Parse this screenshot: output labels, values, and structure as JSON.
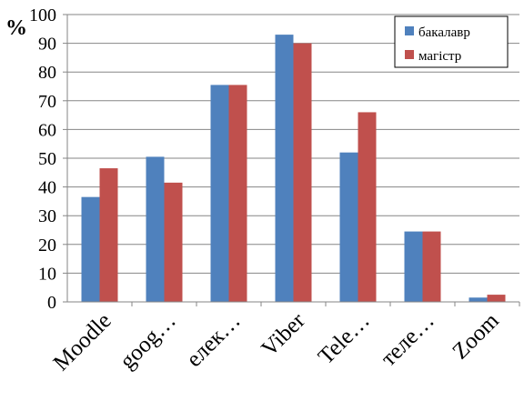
{
  "chart_data": {
    "type": "bar",
    "title": "",
    "xlabel": "",
    "ylabel": "%",
    "ylim": [
      0,
      100
    ],
    "ytick_step": 10,
    "grid": "horizontal",
    "legend_position": "top-right",
    "categories": [
      "Moodle",
      "goog…",
      "елек…",
      "Viber",
      "Tele…",
      "теле…",
      "Zoom"
    ],
    "series": [
      {
        "name": "бакалавр",
        "color": "#4F81BD",
        "values": [
          36.5,
          50.5,
          75.5,
          93,
          52,
          24.5,
          1.5
        ]
      },
      {
        "name": "магістр",
        "color": "#C0504D",
        "values": [
          46.5,
          41.5,
          75.5,
          90,
          66,
          24.5,
          2.5
        ]
      }
    ]
  }
}
